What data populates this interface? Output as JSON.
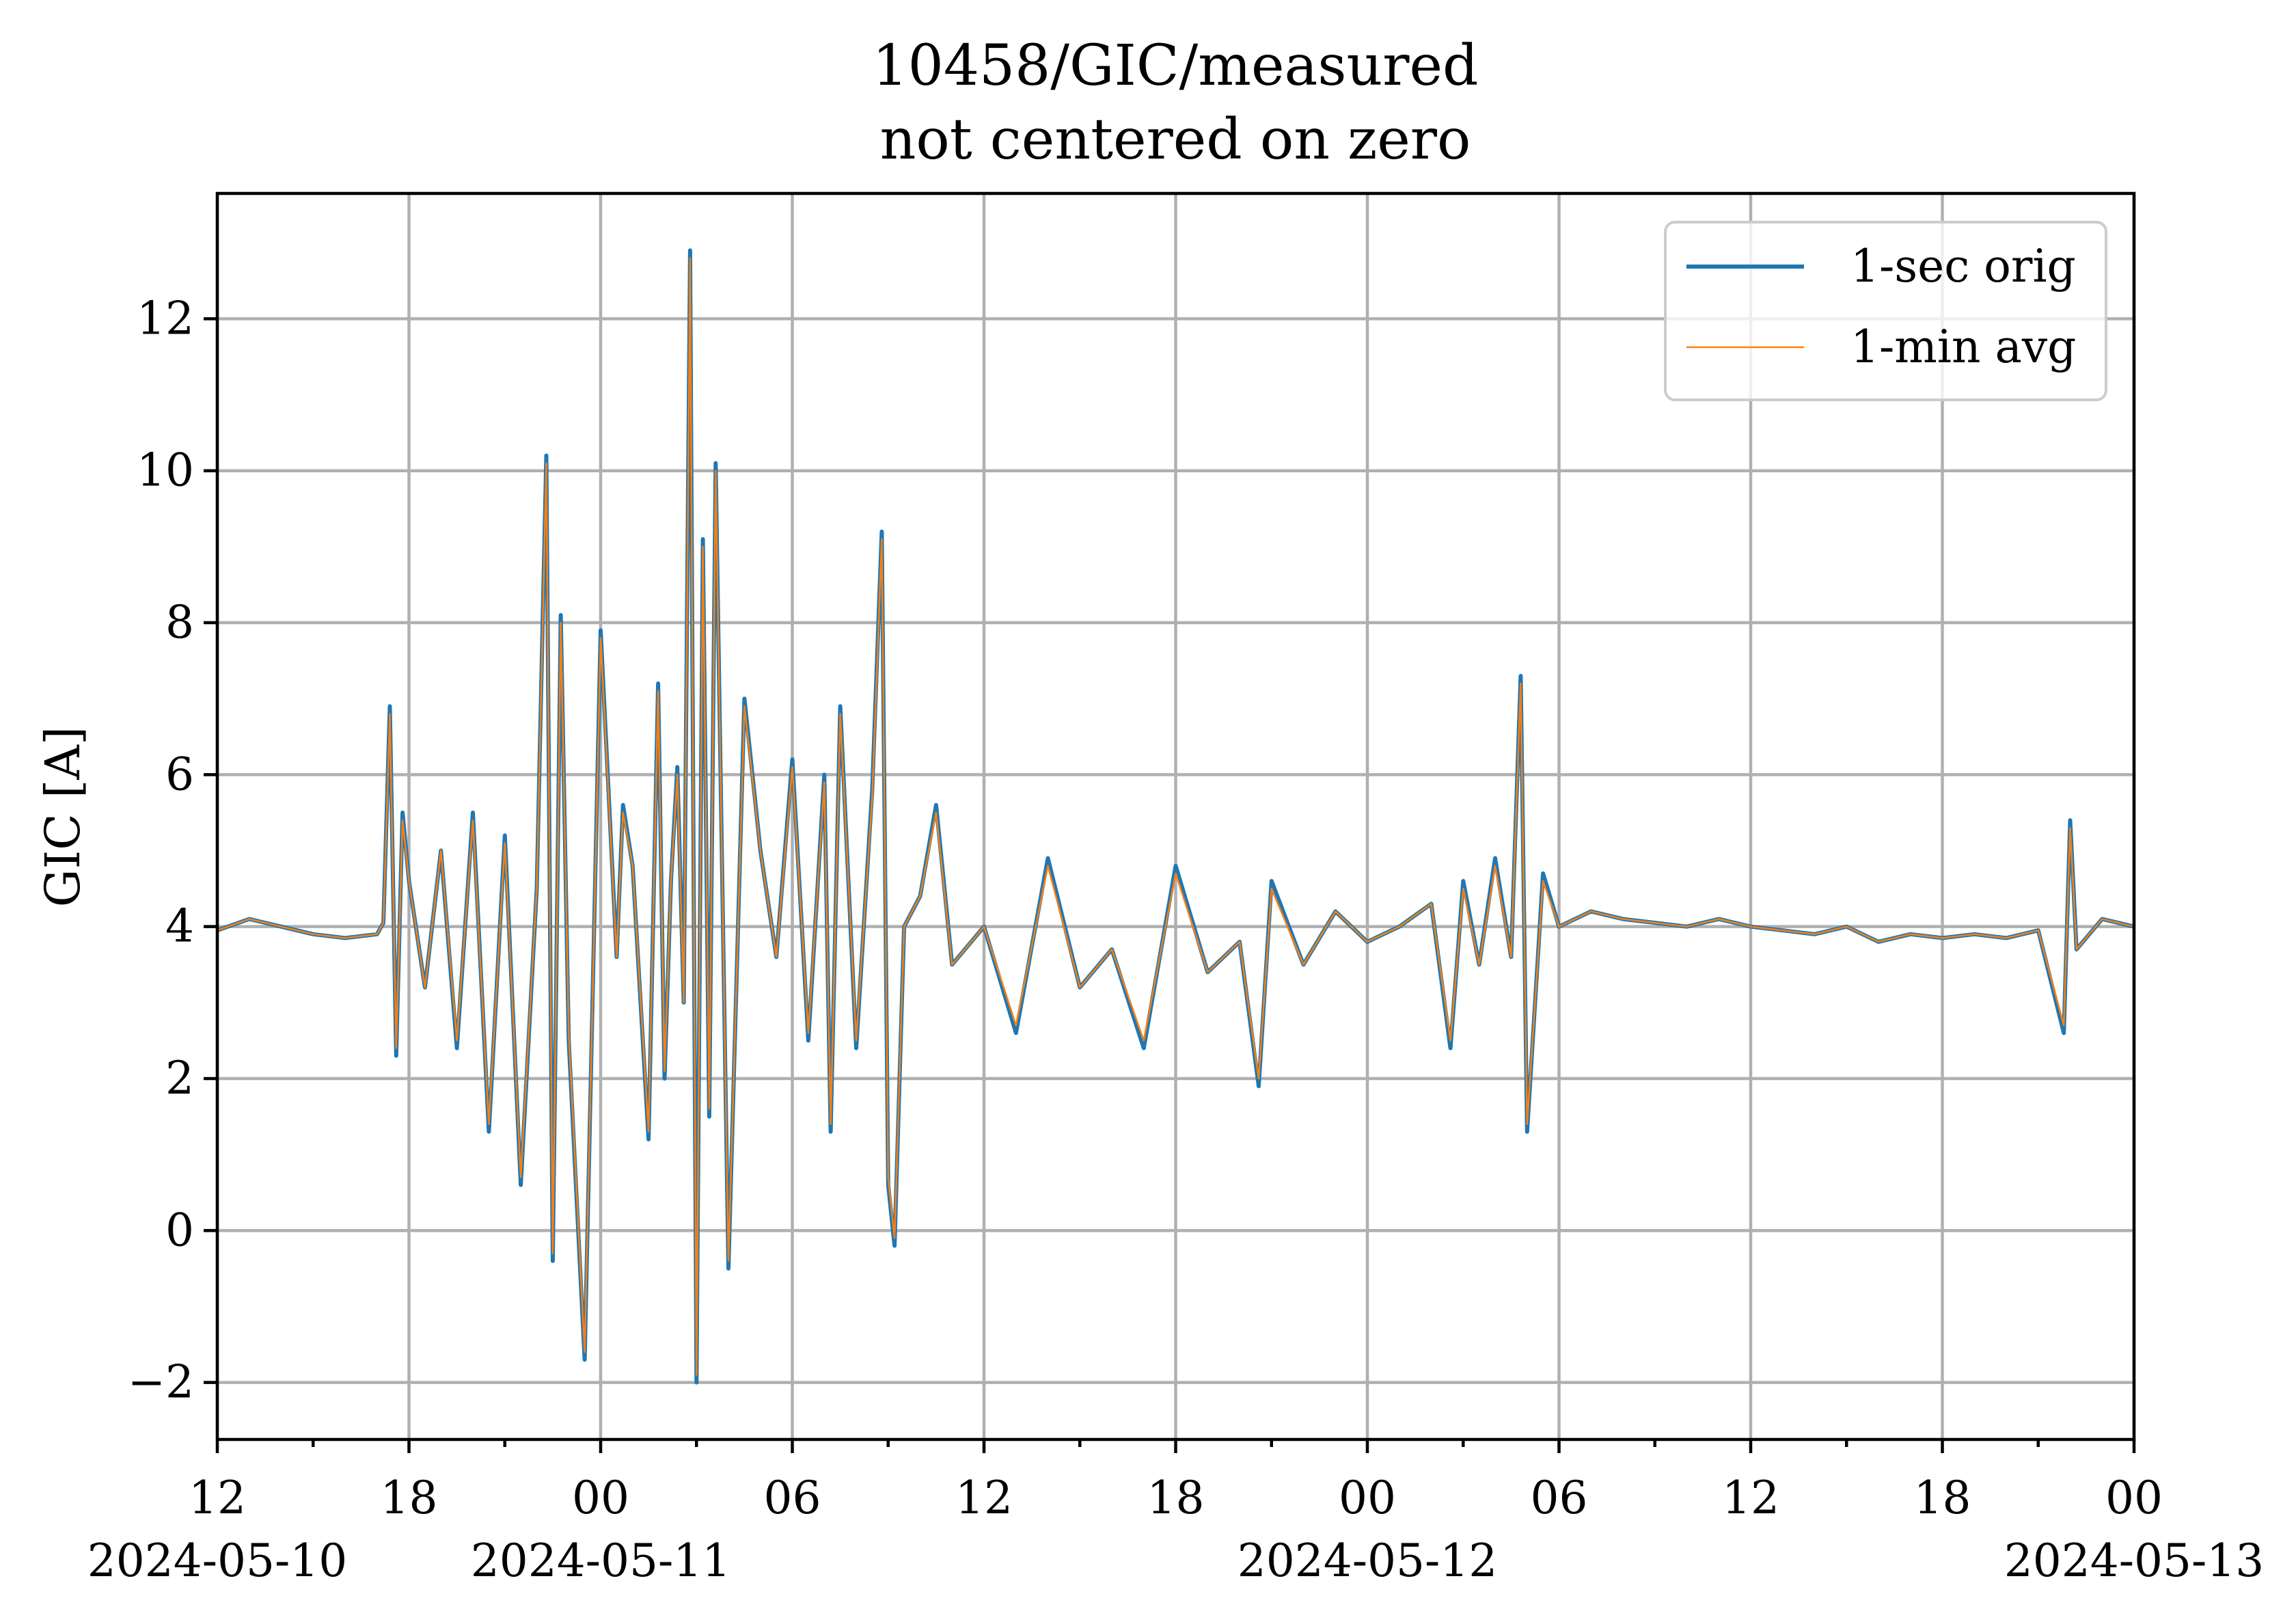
{
  "chart_data": {
    "type": "line",
    "title": "10458/GIC/measured",
    "subtitle": "not centered on zero",
    "xlabel": "",
    "ylabel": "GIC [A]",
    "ylim": [
      -2.75,
      13.65
    ],
    "xlim": [
      "2024-05-10 12:00",
      "2024-05-13 00:00"
    ],
    "grid": true,
    "legend_position": "upper right",
    "x_ticks": [
      {
        "value": "2024-05-10 12:00",
        "label": "12",
        "date": "2024-05-10"
      },
      {
        "value": "2024-05-10 18:00",
        "label": "18",
        "date": ""
      },
      {
        "value": "2024-05-11 00:00",
        "label": "00",
        "date": "2024-05-11"
      },
      {
        "value": "2024-05-11 06:00",
        "label": "06",
        "date": ""
      },
      {
        "value": "2024-05-11 12:00",
        "label": "12",
        "date": ""
      },
      {
        "value": "2024-05-11 18:00",
        "label": "18",
        "date": ""
      },
      {
        "value": "2024-05-12 00:00",
        "label": "00",
        "date": "2024-05-12"
      },
      {
        "value": "2024-05-12 06:00",
        "label": "06",
        "date": ""
      },
      {
        "value": "2024-05-12 12:00",
        "label": "12",
        "date": ""
      },
      {
        "value": "2024-05-12 18:00",
        "label": "18",
        "date": ""
      },
      {
        "value": "2024-05-13 00:00",
        "label": "00",
        "date": "2024-05-13"
      }
    ],
    "y_ticks": [
      {
        "value": -2,
        "label": "−2"
      },
      {
        "value": 0,
        "label": "0"
      },
      {
        "value": 2,
        "label": "2"
      },
      {
        "value": 4,
        "label": "4"
      },
      {
        "value": 6,
        "label": "6"
      },
      {
        "value": 8,
        "label": "8"
      },
      {
        "value": 10,
        "label": "10"
      },
      {
        "value": 12,
        "label": "12"
      }
    ],
    "series": [
      {
        "name": "1-sec orig",
        "color": "#1f77b4",
        "x": [
          "2024-05-10 12:00",
          "2024-05-10 13:00",
          "2024-05-10 14:00",
          "2024-05-10 15:00",
          "2024-05-10 16:00",
          "2024-05-10 17:00",
          "2024-05-10 17:12",
          "2024-05-10 17:24",
          "2024-05-10 17:36",
          "2024-05-10 17:48",
          "2024-05-10 18:00",
          "2024-05-10 18:30",
          "2024-05-10 19:00",
          "2024-05-10 19:30",
          "2024-05-10 20:00",
          "2024-05-10 20:30",
          "2024-05-10 21:00",
          "2024-05-10 21:30",
          "2024-05-10 22:00",
          "2024-05-10 22:18",
          "2024-05-10 22:30",
          "2024-05-10 22:45",
          "2024-05-10 23:00",
          "2024-05-10 23:30",
          "2024-05-11 00:00",
          "2024-05-11 00:30",
          "2024-05-11 00:42",
          "2024-05-11 01:00",
          "2024-05-11 01:30",
          "2024-05-11 01:48",
          "2024-05-11 02:00",
          "2024-05-11 02:12",
          "2024-05-11 02:24",
          "2024-05-11 02:36",
          "2024-05-11 02:48",
          "2024-05-11 03:00",
          "2024-05-11 03:12",
          "2024-05-11 03:24",
          "2024-05-11 03:36",
          "2024-05-11 04:00",
          "2024-05-11 04:30",
          "2024-05-11 05:00",
          "2024-05-11 05:30",
          "2024-05-11 06:00",
          "2024-05-11 06:30",
          "2024-05-11 07:00",
          "2024-05-11 07:12",
          "2024-05-11 07:30",
          "2024-05-11 08:00",
          "2024-05-11 08:30",
          "2024-05-11 08:48",
          "2024-05-11 09:00",
          "2024-05-11 09:12",
          "2024-05-11 09:30",
          "2024-05-11 10:00",
          "2024-05-11 10:30",
          "2024-05-11 11:00",
          "2024-05-11 12:00",
          "2024-05-11 13:00",
          "2024-05-11 14:00",
          "2024-05-11 15:00",
          "2024-05-11 16:00",
          "2024-05-11 17:00",
          "2024-05-11 18:00",
          "2024-05-11 19:00",
          "2024-05-11 20:00",
          "2024-05-11 20:36",
          "2024-05-11 21:00",
          "2024-05-11 22:00",
          "2024-05-11 23:00",
          "2024-05-12 00:00",
          "2024-05-12 01:00",
          "2024-05-12 02:00",
          "2024-05-12 02:36",
          "2024-05-12 03:00",
          "2024-05-12 03:30",
          "2024-05-12 04:00",
          "2024-05-12 04:30",
          "2024-05-12 04:48",
          "2024-05-12 05:00",
          "2024-05-12 05:30",
          "2024-05-12 06:00",
          "2024-05-12 07:00",
          "2024-05-12 08:00",
          "2024-05-12 09:00",
          "2024-05-12 10:00",
          "2024-05-12 11:00",
          "2024-05-12 12:00",
          "2024-05-12 13:00",
          "2024-05-12 14:00",
          "2024-05-12 15:00",
          "2024-05-12 16:00",
          "2024-05-12 17:00",
          "2024-05-12 18:00",
          "2024-05-12 19:00",
          "2024-05-12 20:00",
          "2024-05-12 21:00",
          "2024-05-12 21:48",
          "2024-05-12 22:00",
          "2024-05-12 22:12",
          "2024-05-12 23:00",
          "2024-05-13 00:00"
        ],
        "y": [
          3.95,
          4.1,
          4.0,
          3.9,
          3.85,
          3.9,
          4.05,
          6.9,
          2.3,
          5.5,
          4.6,
          3.2,
          5.0,
          2.4,
          5.5,
          1.3,
          5.2,
          0.6,
          4.5,
          10.2,
          -0.4,
          8.1,
          2.5,
          -1.7,
          7.9,
          3.6,
          5.6,
          4.8,
          1.2,
          7.2,
          2.0,
          4.6,
          6.1,
          3.0,
          12.9,
          -2.0,
          9.1,
          1.5,
          10.1,
          -0.5,
          7.0,
          5.0,
          3.6,
          6.2,
          2.5,
          6.0,
          1.3,
          6.9,
          2.4,
          5.8,
          9.2,
          0.6,
          -0.2,
          4.0,
          4.4,
          5.6,
          3.5,
          4.0,
          2.6,
          4.9,
          3.2,
          3.7,
          2.4,
          4.8,
          3.4,
          3.8,
          1.9,
          4.6,
          3.5,
          4.2,
          3.8,
          4.0,
          4.3,
          2.4,
          4.6,
          3.5,
          4.9,
          3.6,
          7.3,
          1.3,
          4.7,
          4.0,
          4.2,
          4.1,
          4.05,
          4.0,
          4.1,
          4.0,
          3.95,
          3.9,
          4.0,
          3.8,
          3.9,
          3.85,
          3.9,
          3.85,
          3.95,
          2.6,
          5.4,
          3.7,
          4.1,
          4.0
        ]
      },
      {
        "name": "1-min avg",
        "color": "#ff7f0e",
        "x": [
          "2024-05-10 12:00",
          "2024-05-10 13:00",
          "2024-05-10 14:00",
          "2024-05-10 15:00",
          "2024-05-10 16:00",
          "2024-05-10 17:00",
          "2024-05-10 17:12",
          "2024-05-10 17:24",
          "2024-05-10 17:36",
          "2024-05-10 17:48",
          "2024-05-10 18:00",
          "2024-05-10 18:30",
          "2024-05-10 19:00",
          "2024-05-10 19:30",
          "2024-05-10 20:00",
          "2024-05-10 20:30",
          "2024-05-10 21:00",
          "2024-05-10 21:30",
          "2024-05-10 22:00",
          "2024-05-10 22:18",
          "2024-05-10 22:30",
          "2024-05-10 22:45",
          "2024-05-10 23:00",
          "2024-05-10 23:30",
          "2024-05-11 00:00",
          "2024-05-11 00:30",
          "2024-05-11 00:42",
          "2024-05-11 01:00",
          "2024-05-11 01:30",
          "2024-05-11 01:48",
          "2024-05-11 02:00",
          "2024-05-11 02:12",
          "2024-05-11 02:24",
          "2024-05-11 02:36",
          "2024-05-11 02:48",
          "2024-05-11 03:00",
          "2024-05-11 03:12",
          "2024-05-11 03:24",
          "2024-05-11 03:36",
          "2024-05-11 04:00",
          "2024-05-11 04:30",
          "2024-05-11 05:00",
          "2024-05-11 05:30",
          "2024-05-11 06:00",
          "2024-05-11 06:30",
          "2024-05-11 07:00",
          "2024-05-11 07:12",
          "2024-05-11 07:30",
          "2024-05-11 08:00",
          "2024-05-11 08:30",
          "2024-05-11 08:48",
          "2024-05-11 09:00",
          "2024-05-11 09:12",
          "2024-05-11 09:30",
          "2024-05-11 10:00",
          "2024-05-11 10:30",
          "2024-05-11 11:00",
          "2024-05-11 12:00",
          "2024-05-11 13:00",
          "2024-05-11 14:00",
          "2024-05-11 15:00",
          "2024-05-11 16:00",
          "2024-05-11 17:00",
          "2024-05-11 18:00",
          "2024-05-11 19:00",
          "2024-05-11 20:00",
          "2024-05-11 20:36",
          "2024-05-11 21:00",
          "2024-05-11 22:00",
          "2024-05-11 23:00",
          "2024-05-12 00:00",
          "2024-05-12 01:00",
          "2024-05-12 02:00",
          "2024-05-12 02:36",
          "2024-05-12 03:00",
          "2024-05-12 03:30",
          "2024-05-12 04:00",
          "2024-05-12 04:30",
          "2024-05-12 04:48",
          "2024-05-12 05:00",
          "2024-05-12 05:30",
          "2024-05-12 06:00",
          "2024-05-12 07:00",
          "2024-05-12 08:00",
          "2024-05-12 09:00",
          "2024-05-12 10:00",
          "2024-05-12 11:00",
          "2024-05-12 12:00",
          "2024-05-12 13:00",
          "2024-05-12 14:00",
          "2024-05-12 15:00",
          "2024-05-12 16:00",
          "2024-05-12 17:00",
          "2024-05-12 18:00",
          "2024-05-12 19:00",
          "2024-05-12 20:00",
          "2024-05-12 21:00",
          "2024-05-12 21:48",
          "2024-05-12 22:00",
          "2024-05-12 22:12",
          "2024-05-12 23:00",
          "2024-05-13 00:00"
        ],
        "y": [
          3.95,
          4.1,
          4.0,
          3.9,
          3.85,
          3.9,
          4.05,
          6.8,
          2.4,
          5.4,
          4.6,
          3.2,
          5.0,
          2.5,
          5.4,
          1.4,
          5.1,
          0.7,
          4.5,
          10.1,
          -0.3,
          8.0,
          2.6,
          -1.6,
          7.8,
          3.6,
          5.5,
          4.8,
          1.3,
          7.1,
          2.1,
          4.6,
          6.0,
          3.0,
          12.8,
          -1.9,
          9.0,
          1.6,
          10.0,
          -0.4,
          6.9,
          5.0,
          3.6,
          6.1,
          2.6,
          5.9,
          1.4,
          6.8,
          2.5,
          5.7,
          9.1,
          0.7,
          -0.1,
          4.0,
          4.4,
          5.5,
          3.5,
          4.0,
          2.7,
          4.8,
          3.2,
          3.7,
          2.5,
          4.7,
          3.4,
          3.8,
          2.0,
          4.5,
          3.5,
          4.2,
          3.8,
          4.0,
          4.3,
          2.5,
          4.5,
          3.5,
          4.8,
          3.6,
          7.2,
          1.4,
          4.6,
          4.0,
          4.2,
          4.1,
          4.05,
          4.0,
          4.1,
          4.0,
          3.95,
          3.9,
          4.0,
          3.8,
          3.9,
          3.85,
          3.9,
          3.85,
          3.95,
          2.7,
          5.3,
          3.7,
          4.1,
          4.0
        ]
      }
    ]
  }
}
